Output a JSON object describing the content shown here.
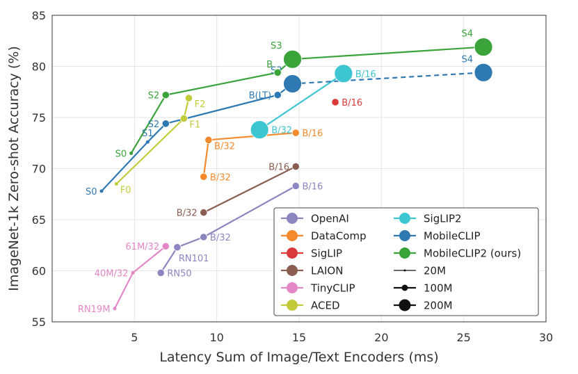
{
  "chart_data": {
    "type": "scatter",
    "xlabel": "Latency Sum of Image/Text Encoders (ms)",
    "ylabel": "ImageNet-1k Zero-shot Accuracy (%)",
    "xlim": [
      0,
      30
    ],
    "ylim": [
      55,
      85
    ],
    "xticks": [
      5,
      10,
      15,
      20,
      25,
      30
    ],
    "yticks": [
      55,
      60,
      65,
      70,
      75,
      80,
      85
    ],
    "grid": true,
    "legend_position": "bottom-right",
    "series": [
      {
        "name": "OpenAI",
        "color": "#8c86c0",
        "connect": "line",
        "points": [
          {
            "x": 6.6,
            "y": 59.8,
            "label": "RN50",
            "size": "100M",
            "lpos": "right"
          },
          {
            "x": 7.6,
            "y": 62.3,
            "label": "RN101",
            "size": "100M",
            "lpos": "below"
          },
          {
            "x": 9.2,
            "y": 63.3,
            "label": "B/32",
            "size": "100M",
            "lpos": "right"
          },
          {
            "x": 14.8,
            "y": 68.3,
            "label": "B/16",
            "size": "100M",
            "lpos": "right"
          }
        ]
      },
      {
        "name": "DataComp",
        "color": "#f58a2c",
        "connect": "line",
        "points": [
          {
            "x": 9.2,
            "y": 69.2,
            "label": "B/32",
            "size": "100M",
            "lpos": "right"
          },
          {
            "x": 9.5,
            "y": 72.8,
            "label": "B/32",
            "size": "100M",
            "lpos": "right-below"
          },
          {
            "x": 14.8,
            "y": 73.5,
            "label": "B/16",
            "size": "100M",
            "lpos": "right"
          }
        ]
      },
      {
        "name": "SigLIP",
        "color": "#d93a3b",
        "connect": "none",
        "points": [
          {
            "x": 17.2,
            "y": 76.5,
            "label": "B/16",
            "size": "100M",
            "lpos": "right"
          }
        ]
      },
      {
        "name": "LAION",
        "color": "#8b5d52",
        "connect": "line",
        "points": [
          {
            "x": 9.2,
            "y": 65.7,
            "label": "B/32",
            "size": "100M",
            "lpos": "left"
          },
          {
            "x": 14.8,
            "y": 70.2,
            "label": "B/16",
            "size": "100M",
            "lpos": "left"
          }
        ]
      },
      {
        "name": "TinyCLIP",
        "color": "#e487c6",
        "connect": "line",
        "points": [
          {
            "x": 3.8,
            "y": 56.3,
            "label": "RN19M",
            "size": "20M",
            "lpos": "left"
          },
          {
            "x": 4.9,
            "y": 59.8,
            "label": "40M/32",
            "size": "20M",
            "lpos": "left"
          },
          {
            "x": 6.9,
            "y": 62.4,
            "label": "61M/32",
            "size": "100M",
            "lpos": "left"
          }
        ]
      },
      {
        "name": "ACED",
        "color": "#c2cc3a",
        "connect": "line",
        "points": [
          {
            "x": 3.9,
            "y": 68.5,
            "label": "F0",
            "size": "20M",
            "lpos": "right-below"
          },
          {
            "x": 8.0,
            "y": 74.9,
            "label": "F1",
            "size": "100M",
            "lpos": "right-below"
          },
          {
            "x": 8.3,
            "y": 76.9,
            "label": "F2",
            "size": "100M",
            "lpos": "right-below"
          }
        ]
      },
      {
        "name": "SigLIP2",
        "color": "#3dc5d2",
        "connect": "line",
        "points": [
          {
            "x": 12.6,
            "y": 73.8,
            "label": "B/32",
            "size": "200M",
            "lpos": "right"
          },
          {
            "x": 17.7,
            "y": 79.3,
            "label": "B/16",
            "size": "200M",
            "lpos": "right"
          }
        ]
      },
      {
        "name": "MobileCLIP",
        "color": "#2f79b3",
        "connect": "line-dashed-last",
        "points": [
          {
            "x": 3.0,
            "y": 67.8,
            "label": "S0",
            "size": "20M",
            "lpos": "left"
          },
          {
            "x": 5.8,
            "y": 72.6,
            "label": "S1",
            "size": "20M",
            "lpos": "above"
          },
          {
            "x": 6.9,
            "y": 74.4,
            "label": "S2",
            "size": "100M",
            "lpos": "left"
          },
          {
            "x": 13.7,
            "y": 77.2,
            "label": "B(LT)",
            "size": "100M",
            "lpos": "left"
          },
          {
            "x": 14.6,
            "y": 78.3,
            "label": "S3",
            "size": "200M",
            "lpos": "above-left"
          },
          {
            "x": 26.2,
            "y": 79.4,
            "label": "S4",
            "size": "200M",
            "lpos": "above-left"
          }
        ]
      },
      {
        "name": "MobileCLIP2 (ours)",
        "color": "#3aa33a",
        "connect": "line",
        "points": [
          {
            "x": 4.8,
            "y": 71.5,
            "label": "S0",
            "size": "20M",
            "lpos": "left"
          },
          {
            "x": 6.9,
            "y": 77.2,
            "label": "S2",
            "size": "100M",
            "lpos": "left"
          },
          {
            "x": 13.7,
            "y": 79.4,
            "label": "B",
            "size": "100M",
            "lpos": "above-left"
          },
          {
            "x": 14.6,
            "y": 80.7,
            "label": "S3",
            "size": "200M",
            "lpos": "above-left"
          },
          {
            "x": 26.2,
            "y": 81.9,
            "label": "S4",
            "size": "200M",
            "lpos": "above-left"
          }
        ]
      }
    ],
    "size_legend": [
      {
        "label": "20M",
        "size": "20M"
      },
      {
        "label": "100M",
        "size": "100M"
      },
      {
        "label": "200M",
        "size": "200M"
      }
    ]
  }
}
